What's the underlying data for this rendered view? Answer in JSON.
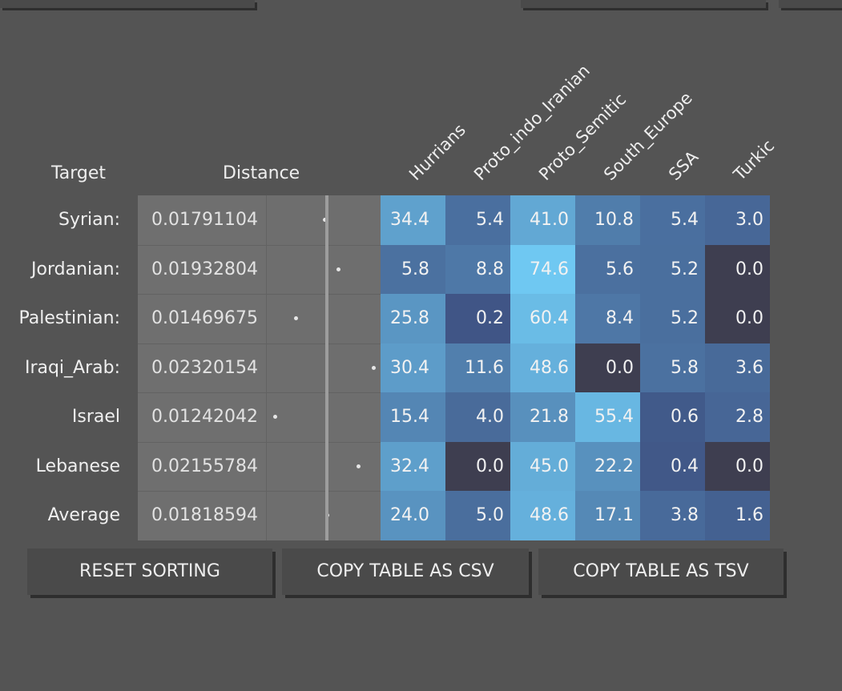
{
  "headers": {
    "target": "Target",
    "distance": "Distance",
    "columns": [
      "Hurrians",
      "Proto_indo_Iranian",
      "Proto_Semitic",
      "South_Europe",
      "SSA",
      "Turkic"
    ]
  },
  "rows": [
    {
      "label": "Syrian:",
      "distance": "0.01791104",
      "distance_value": 0.01791104,
      "values": [
        "34.4",
        "5.4",
        "41.0",
        "10.8",
        "5.4",
        "3.0"
      ]
    },
    {
      "label": "Jordanian:",
      "distance": "0.01932804",
      "distance_value": 0.01932804,
      "values": [
        "5.8",
        "8.8",
        "74.6",
        "5.6",
        "5.2",
        "0.0"
      ]
    },
    {
      "label": "Palestinian:",
      "distance": "0.01469675",
      "distance_value": 0.01469675,
      "values": [
        "25.8",
        "0.2",
        "60.4",
        "8.4",
        "5.2",
        "0.0"
      ]
    },
    {
      "label": "Iraqi_Arab:",
      "distance": "0.02320154",
      "distance_value": 0.02320154,
      "values": [
        "30.4",
        "11.6",
        "48.6",
        "0.0",
        "5.8",
        "3.6"
      ]
    },
    {
      "label": "Israel",
      "distance": "0.01242042",
      "distance_value": 0.01242042,
      "values": [
        "15.4",
        "4.0",
        "21.8",
        "55.4",
        "0.6",
        "2.8"
      ]
    },
    {
      "label": "Lebanese",
      "distance": "0.02155784",
      "distance_value": 0.02155784,
      "values": [
        "32.4",
        "0.0",
        "45.0",
        "22.2",
        "0.4",
        "0.0"
      ]
    },
    {
      "label": "Average",
      "distance": "0.01818594",
      "distance_value": 0.01818594,
      "values": [
        "24.0",
        "5.0",
        "48.6",
        "17.1",
        "3.8",
        "1.6"
      ]
    }
  ],
  "buttons": {
    "reset": "RESET SORTING",
    "csv": "COPY TABLE AS CSV",
    "tsv": "COPY TABLE AS TSV"
  },
  "colors": {
    "background": "#545454",
    "zero_cell": "#3e3e50",
    "low_cell": "#3d4f80",
    "high_cell": "#6fc8f2"
  }
}
